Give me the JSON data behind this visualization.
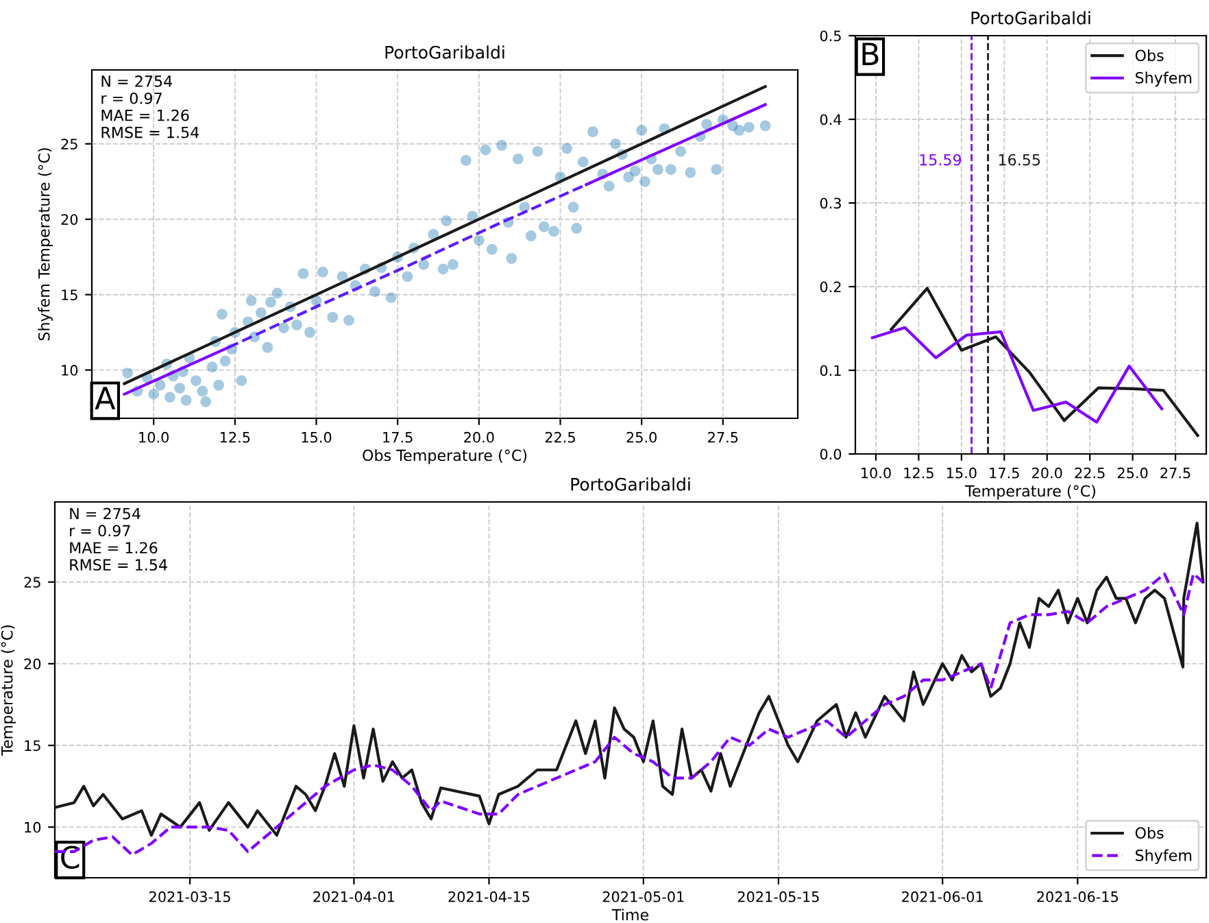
{
  "chart_data": [
    {
      "type": "scatter",
      "title": "PortoGaribaldi",
      "xlabel": "Obs Temperature (°C)",
      "ylabel": "Shyfem Temperature (°C)",
      "grid": true,
      "xlim": [
        8.1,
        29.8
      ],
      "ylim": [
        6.8,
        29.9
      ],
      "xticks": [
        {
          "value": 10,
          "label": "10.0"
        },
        12.5,
        {
          "value": 15,
          "label": "15.0"
        },
        17.5,
        {
          "value": 20,
          "label": "20.0"
        },
        22.5,
        {
          "value": 25,
          "label": "25.0"
        },
        27.5
      ],
      "yticks": [
        10,
        15,
        20,
        25
      ],
      "annotations": [
        "N = 2754\nr = 0.97\nMAE = 1.26\nRMSE = 1.54",
        "A"
      ],
      "series": [
        {
          "type": "scatter",
          "color": "#1f77b4",
          "marker": "circle",
          "x": [
            9.2,
            9.5,
            9.8,
            10.0,
            10.2,
            10.4,
            10.5,
            10.6,
            10.8,
            10.9,
            11.0,
            11.1,
            11.3,
            11.5,
            11.6,
            11.8,
            11.9,
            12.0,
            12.1,
            12.2,
            12.4,
            12.5,
            12.7,
            12.9,
            13.0,
            13.1,
            13.3,
            13.5,
            13.6,
            13.8,
            14.0,
            14.2,
            14.4,
            14.6,
            14.8,
            15.0,
            15.2,
            15.5,
            15.8,
            16.0,
            16.2,
            16.5,
            16.8,
            17.0,
            17.3,
            17.5,
            17.8,
            18.0,
            18.3,
            18.6,
            18.9,
            19.0,
            19.2,
            19.6,
            19.8,
            20.0,
            20.2,
            20.4,
            20.7,
            20.9,
            21.0,
            21.2,
            21.4,
            21.6,
            21.8,
            22.0,
            22.3,
            22.5,
            22.7,
            22.9,
            23.0,
            23.2,
            23.5,
            23.8,
            24.0,
            24.2,
            24.4,
            24.6,
            24.8,
            25.0,
            25.1,
            25.3,
            25.5,
            25.7,
            25.9,
            26.2,
            26.5,
            26.8,
            27.0,
            27.3,
            27.5,
            27.8,
            28.0,
            28.3,
            28.8
          ],
          "values": [
            9.8,
            8.6,
            9.5,
            8.4,
            9.0,
            10.4,
            8.2,
            9.6,
            8.8,
            9.9,
            8.0,
            10.8,
            9.3,
            8.6,
            7.9,
            10.2,
            11.9,
            9.0,
            13.7,
            10.6,
            11.4,
            12.5,
            9.3,
            13.2,
            14.6,
            12.2,
            13.8,
            11.5,
            14.5,
            15.1,
            12.8,
            14.2,
            13.0,
            16.4,
            12.5,
            14.6,
            16.5,
            13.5,
            16.2,
            13.3,
            15.6,
            16.7,
            15.2,
            16.8,
            14.8,
            17.5,
            16.2,
            18.1,
            17.0,
            19.0,
            16.7,
            19.9,
            17.0,
            23.9,
            20.2,
            18.6,
            24.6,
            18.0,
            24.9,
            19.8,
            17.4,
            24.0,
            20.8,
            18.9,
            24.5,
            19.5,
            19.2,
            22.8,
            24.7,
            20.8,
            19.4,
            23.8,
            25.8,
            23.0,
            22.2,
            25.0,
            24.3,
            22.8,
            23.2,
            25.9,
            22.5,
            24.0,
            23.3,
            26.0,
            23.3,
            24.5,
            23.1,
            25.5,
            26.3,
            23.3,
            26.6,
            26.2,
            25.9,
            26.1,
            26.2
          ]
        },
        {
          "type": "line",
          "color": "#1a1a1a",
          "line_style": "solid",
          "x": [
            9.1,
            28.8
          ],
          "values": [
            9.1,
            28.8
          ]
        },
        {
          "type": "line",
          "color": "#7f00ff",
          "line_style": "solid",
          "x": [
            9.1,
            12.3,
            17.8,
            23.3,
            28.8
          ],
          "values": [
            8.4,
            11.5,
            null,
            22.3,
            27.6
          ]
        },
        {
          "type": "line",
          "color": "#5b1cff",
          "line_style": "dashed",
          "x": [
            12.3,
            15.0,
            17.8,
            20.5,
            23.3
          ],
          "values": [
            11.5,
            14.2,
            16.9,
            19.6,
            22.3
          ]
        }
      ]
    },
    {
      "type": "line",
      "title": "PortoGaribaldi",
      "xlabel": "Temperature (°C)",
      "grid": true,
      "legend": "top right",
      "xlim": [
        8.8,
        29.3
      ],
      "ylim": [
        0,
        0.5
      ],
      "xticks": [
        {
          "value": 10,
          "label": "10.0"
        },
        12.5,
        {
          "value": 15,
          "label": "15.0"
        },
        17.5,
        {
          "value": 20,
          "label": "20.0"
        },
        22.5,
        {
          "value": 25,
          "label": "25.0"
        },
        27.5
      ],
      "yticks": [
        {
          "value": 0,
          "label": "0.0"
        },
        0.1,
        0.2,
        0.3,
        0.4,
        0.5
      ],
      "annotations": [
        "B"
      ],
      "ref_lines": [
        {
          "axis": "x",
          "value": 15.59,
          "label": "15.59",
          "color": "#7f00ff",
          "line_style": "dashed"
        },
        {
          "axis": "x",
          "value": 16.55,
          "label": "16.55",
          "color": "#1a1a1a",
          "line_style": "dashed"
        }
      ],
      "series": [
        {
          "name": "Obs",
          "color": "#1a1a1a",
          "x": [
            10.9,
            13.0,
            15.0,
            17.0,
            19.0,
            21.0,
            23.0,
            25.0,
            26.8,
            28.8
          ],
          "values": [
            0.149,
            0.198,
            0.124,
            0.14,
            0.097,
            0.04,
            0.079,
            0.078,
            0.076,
            0.022
          ]
        },
        {
          "name": "Shyfem",
          "color": "#7f00ff",
          "x": [
            9.8,
            11.7,
            13.5,
            15.3,
            17.3,
            19.2,
            21.1,
            22.9,
            24.8,
            26.7
          ],
          "values": [
            0.139,
            0.151,
            0.115,
            0.142,
            0.146,
            0.052,
            0.062,
            0.038,
            0.105,
            0.054
          ]
        }
      ]
    },
    {
      "type": "line",
      "title": "PortoGaribaldi",
      "xlabel": "Time",
      "ylabel": "Temperature (°C)",
      "grid": true,
      "legend": "bottom right",
      "xlim": [
        "2021-03-01",
        "2021-06-28T08:00"
      ],
      "ylim": [
        6.9,
        29.9
      ],
      "xticks": [
        "2021-03-15",
        "2021-04-01",
        "2021-04-15",
        "2021-05-01",
        "2021-05-15",
        "2021-06-01",
        "2021-06-15"
      ],
      "yticks": [
        10,
        15,
        20,
        25
      ],
      "annotations": [
        "N = 2754\nr = 0.97\nMAE = 1.26\nRMSE = 1.54",
        "C"
      ],
      "series": [
        {
          "name": "Obs",
          "color": "#1a1a1a",
          "line_style": "solid",
          "x": [
            "2021-03-01",
            "2021-03-03",
            "2021-03-04",
            "2021-03-05",
            "2021-03-06",
            "2021-03-08",
            "2021-03-10",
            "2021-03-11",
            "2021-03-12",
            "2021-03-14",
            "2021-03-16",
            "2021-03-17",
            "2021-03-19",
            "2021-03-21",
            "2021-03-22",
            "2021-03-24",
            "2021-03-26",
            "2021-03-27",
            "2021-03-28",
            "2021-03-29",
            "2021-03-30",
            "2021-03-31",
            "2021-04-01",
            "2021-04-02",
            "2021-04-03",
            "2021-04-04",
            "2021-04-05",
            "2021-04-06",
            "2021-04-07",
            "2021-04-08",
            "2021-04-09",
            "2021-04-10",
            "2021-04-14",
            "2021-04-15",
            "2021-04-16",
            "2021-04-18",
            "2021-04-20",
            "2021-04-22",
            "2021-04-24",
            "2021-04-25",
            "2021-04-26",
            "2021-04-27",
            "2021-04-28",
            "2021-04-29",
            "2021-04-30",
            "2021-05-01",
            "2021-05-02",
            "2021-05-03",
            "2021-05-04",
            "2021-05-05",
            "2021-05-06",
            "2021-05-07",
            "2021-05-08",
            "2021-05-09",
            "2021-05-10",
            "2021-05-12",
            "2021-05-13",
            "2021-05-14",
            "2021-05-15",
            "2021-05-16",
            "2021-05-17",
            "2021-05-19",
            "2021-05-21",
            "2021-05-22",
            "2021-05-23",
            "2021-05-24",
            "2021-05-26",
            "2021-05-28",
            "2021-05-29",
            "2021-05-30",
            "2021-06-01",
            "2021-06-02",
            "2021-06-03",
            "2021-06-04",
            "2021-06-05",
            "2021-06-06",
            "2021-06-07",
            "2021-06-08",
            "2021-06-09",
            "2021-06-10",
            "2021-06-11",
            "2021-06-12",
            "2021-06-13",
            "2021-06-14",
            "2021-06-15",
            "2021-06-16",
            "2021-06-17",
            "2021-06-18",
            "2021-06-19",
            "2021-06-20",
            "2021-06-21",
            "2021-06-22",
            "2021-06-23",
            "2021-06-24",
            "2021-06-25T22:00",
            "2021-06-26",
            "2021-06-27T09:00",
            "2021-06-28"
          ],
          "values": [
            11.2,
            11.5,
            12.5,
            11.3,
            12.0,
            10.5,
            11.0,
            9.5,
            10.8,
            10.0,
            11.5,
            9.8,
            11.5,
            10.0,
            11.0,
            9.5,
            12.5,
            12.0,
            11.0,
            12.5,
            14.5,
            12.5,
            16.2,
            13.0,
            16.0,
            12.8,
            14.0,
            13.0,
            13.5,
            11.5,
            10.5,
            12.4,
            11.9,
            10.2,
            12.0,
            12.5,
            13.5,
            13.5,
            16.5,
            14.5,
            16.5,
            13.0,
            17.3,
            16.0,
            15.5,
            14.0,
            16.5,
            12.5,
            12.0,
            16.0,
            13.0,
            13.5,
            12.2,
            14.5,
            12.5,
            15.5,
            17.0,
            18.0,
            16.5,
            15.0,
            14.0,
            16.5,
            17.5,
            15.5,
            17.0,
            15.5,
            18.0,
            16.5,
            19.5,
            17.5,
            20.0,
            19.0,
            20.5,
            19.5,
            20.0,
            18.0,
            18.5,
            20.0,
            22.5,
            21.0,
            24.0,
            23.5,
            24.5,
            22.5,
            24.0,
            22.5,
            24.5,
            25.3,
            24.0,
            24.0,
            22.5,
            24.0,
            24.5,
            24.0,
            19.8,
            24.0,
            28.6,
            25.0
          ]
        },
        {
          "name": "Shyfem",
          "color": "#7f00ff",
          "line_style": "dashed",
          "x": [
            "2021-03-01",
            "2021-03-03",
            "2021-03-05",
            "2021-03-07",
            "2021-03-09",
            "2021-03-11",
            "2021-03-13",
            "2021-03-15",
            "2021-03-17",
            "2021-03-19",
            "2021-03-21",
            "2021-03-23",
            "2021-03-25",
            "2021-03-27",
            "2021-03-29",
            "2021-04-01",
            "2021-04-03",
            "2021-04-05",
            "2021-04-07",
            "2021-04-09",
            "2021-04-10",
            "2021-04-14",
            "2021-04-16",
            "2021-04-18",
            "2021-04-20",
            "2021-04-22",
            "2021-04-24",
            "2021-04-26",
            "2021-04-28",
            "2021-04-30",
            "2021-05-02",
            "2021-05-04",
            "2021-05-06",
            "2021-05-08",
            "2021-05-10",
            "2021-05-12",
            "2021-05-14",
            "2021-05-16",
            "2021-05-18",
            "2021-05-20",
            "2021-05-22",
            "2021-05-24",
            "2021-05-26",
            "2021-05-28",
            "2021-05-30",
            "2021-06-01",
            "2021-06-03",
            "2021-06-05",
            "2021-06-06",
            "2021-06-08",
            "2021-06-10",
            "2021-06-12",
            "2021-06-14",
            "2021-06-16",
            "2021-06-18",
            "2021-06-20",
            "2021-06-22",
            "2021-06-24",
            "2021-06-26",
            "2021-06-27",
            "2021-06-28"
          ],
          "values": [
            8.5,
            8.5,
            9.2,
            9.4,
            8.3,
            9.0,
            10.0,
            10.0,
            10.0,
            9.8,
            8.5,
            9.5,
            10.5,
            11.5,
            12.5,
            13.5,
            13.8,
            13.5,
            12.5,
            11.0,
            11.6,
            10.8,
            10.8,
            12.0,
            12.5,
            13.0,
            13.5,
            14.0,
            15.5,
            14.5,
            14.0,
            13.0,
            13.0,
            14.0,
            15.5,
            15.0,
            16.0,
            15.5,
            16.0,
            16.5,
            15.5,
            16.5,
            17.5,
            18.0,
            19.0,
            19.0,
            19.5,
            20.0,
            18.5,
            22.5,
            23.0,
            23.0,
            23.2,
            22.5,
            23.5,
            24.0,
            24.5,
            25.5,
            23.0,
            25.5,
            25.0
          ]
        }
      ]
    }
  ]
}
